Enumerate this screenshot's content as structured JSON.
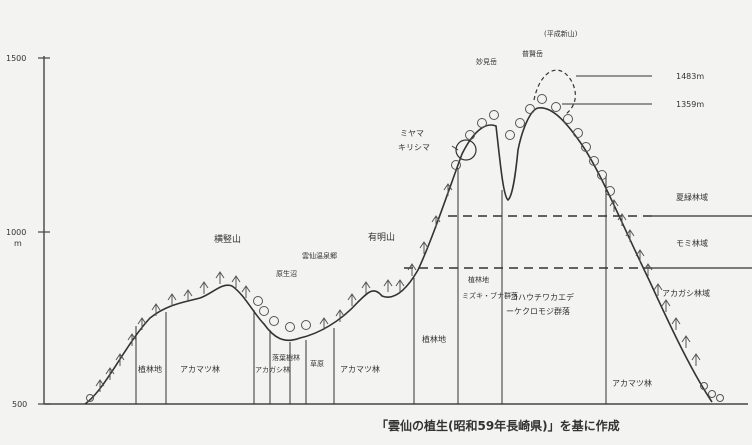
{
  "axis": {
    "ticks": [
      {
        "label": "1500"
      },
      {
        "label": "1000"
      },
      {
        "label": "m"
      },
      {
        "label": "500"
      }
    ]
  },
  "peaks": [
    {
      "name": "横竪山"
    },
    {
      "name": "原生沼"
    },
    {
      "name": "雲仙温泉郷"
    },
    {
      "name": "有明山"
    },
    {
      "name": "ミヤマ"
    },
    {
      "name": "キリシマ"
    },
    {
      "name": "妙見岳"
    },
    {
      "name": "普賢岳"
    },
    {
      "name": "(平成新山)"
    }
  ],
  "elevations": [
    {
      "label": "1483m"
    },
    {
      "label": "1359m"
    }
  ],
  "zones": [
    {
      "label": "植林地"
    },
    {
      "label": "アカマツ林"
    },
    {
      "label": "アカガシ林"
    },
    {
      "label": "落葉樹林"
    },
    {
      "label": "草原"
    },
    {
      "label": "植林地"
    },
    {
      "label": "植林地"
    },
    {
      "label": "ミズキ・ブナ群落"
    },
    {
      "label": "コハウチワカエデ"
    },
    {
      "label": "ーケクロモジ群落"
    },
    {
      "label": "アカマツ林"
    },
    {
      "label": "アカマツ林"
    }
  ],
  "right_zones": [
    {
      "label": "夏緑林域"
    },
    {
      "label": "モミ林域"
    },
    {
      "label": "アカガシ林域"
    }
  ],
  "caption": "「雲仙の植生(昭和59年長崎県)」を基に作成"
}
